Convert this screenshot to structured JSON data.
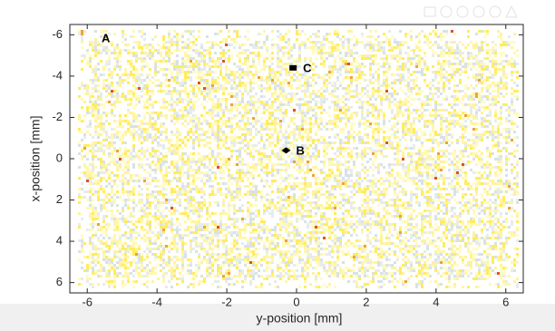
{
  "chart_data": {
    "type": "scatter",
    "xlabel": "y-position [mm]",
    "ylabel": "x-position [mm]",
    "xlim": [
      -6.5,
      6.5
    ],
    "ylim": [
      -6.5,
      6.5
    ],
    "y_reversed": true,
    "xticks": [
      -6,
      -4,
      -2,
      0,
      2,
      4,
      6
    ],
    "yticks": [
      -6,
      -4,
      -2,
      0,
      2,
      4,
      6
    ],
    "annotation": "A",
    "points": [
      {
        "label": "B",
        "x": -0.3,
        "y": -0.4,
        "marker": "diamond",
        "color": "#000000"
      },
      {
        "label": "C",
        "x": -0.1,
        "y": -4.4,
        "marker": "square",
        "color": "#000000"
      }
    ]
  }
}
